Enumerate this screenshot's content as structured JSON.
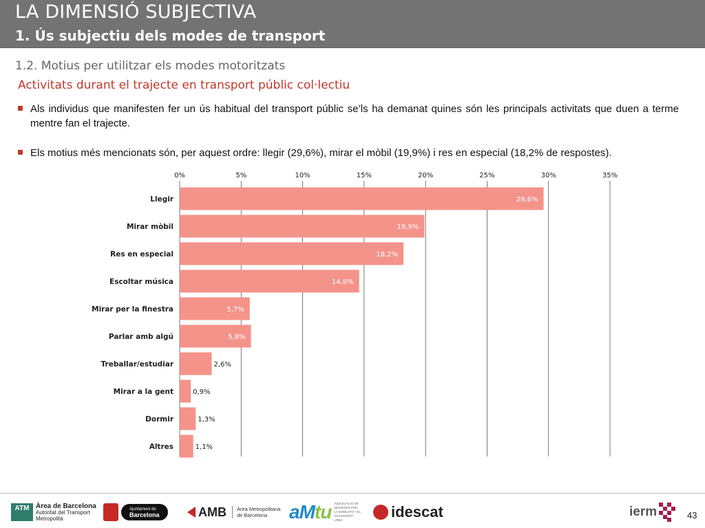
{
  "header": {
    "title": "LA DIMENSIÓ SUBJECTIVA",
    "subtitle": "1. Ús subjectiu dels modes de transport"
  },
  "section": {
    "title": "1.2. Motius per utilitzar els modes motoritzats",
    "subtitle": "Activitats durant el trajecte en transport públic col·lectiu"
  },
  "bullets": [
    "Als individus que manifesten fer un ús habitual del transport públic se’ls ha demanat quines són les principals activitats que duen a terme mentre fan el trajecte.",
    "Els motius més mencionats són, per aquest ordre: llegir (29,6%), mirar el mòbil (19,9%) i res en especial (18,2% de respostes)."
  ],
  "chart_data": {
    "type": "bar",
    "orientation": "horizontal",
    "categories": [
      "Llegir",
      "Mirar mòbil",
      "Res en especial",
      "Escoltar música",
      "Mirar per la finestra",
      "Parlar amb algú",
      "Treballar/estudiar",
      "Mirar a la gent",
      "Dormir",
      "Altres"
    ],
    "values": [
      29.6,
      19.9,
      18.2,
      14.6,
      5.7,
      5.8,
      2.6,
      0.9,
      1.3,
      1.1
    ],
    "value_labels": [
      "29,6%",
      "19,9%",
      "18,2%",
      "14,6%",
      "5,7%",
      "5,8%",
      "2,6%",
      "0,9%",
      "1,3%",
      "1,1%"
    ],
    "xlim": [
      0,
      35
    ],
    "ticks": [
      0,
      5,
      10,
      15,
      20,
      25,
      30,
      35
    ],
    "tick_labels": [
      "0%",
      "5%",
      "10%",
      "15%",
      "20%",
      "25%",
      "30%",
      "35%"
    ],
    "x_axis_position": "top",
    "grid": true,
    "bar_color": "#f4938a"
  },
  "footer": {
    "atm_box": "ATM",
    "atm_line1": "Àrea de Barcelona",
    "atm_line2": "Autoritat del Transport",
    "atm_line3": "Metropolità",
    "ajt_line1": "Ajuntament de",
    "ajt_line2": "Barcelona",
    "amb_mark": "AMB",
    "amb_line1": "Àrea Metropolitana",
    "amb_line2": "de Barcelona",
    "amtu_mark_a": "aM",
    "amtu_mark_b": "tu",
    "amtu_text": "ASSOCIACIÓ DE MUNICIPIS PER LA MOBILITAT I EL TRANSPORT URBÀ",
    "idescat": "idescat",
    "ierm": "ierm",
    "page_number": "43"
  }
}
